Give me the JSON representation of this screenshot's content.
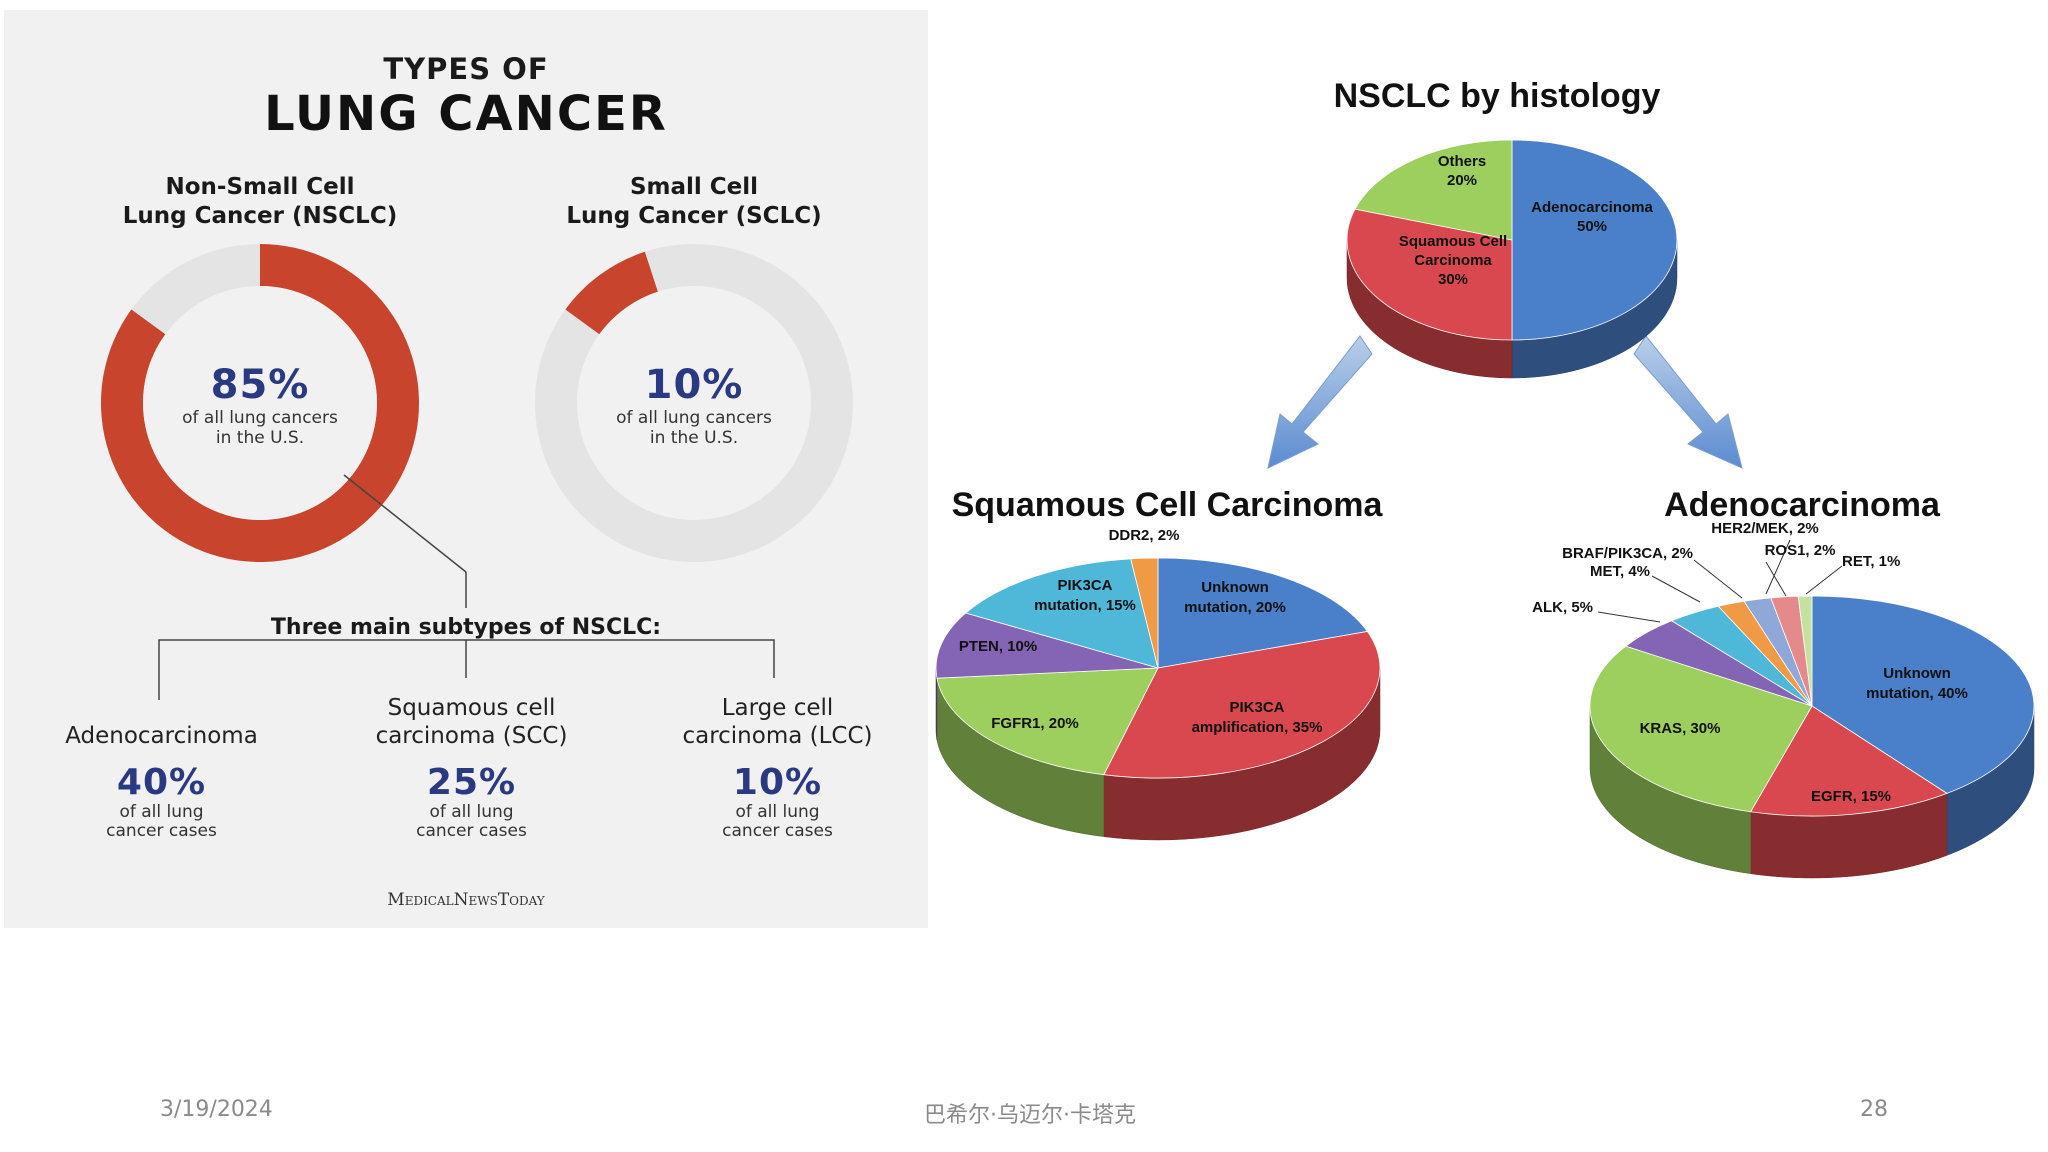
{
  "infographic": {
    "title_small": "TYPES OF",
    "title_big": "LUNG CANCER",
    "nsclc": {
      "header_l1": "Non-Small Cell",
      "header_l2": "Lung Cancer (NSCLC)",
      "percent": "85%",
      "fraction": 0.85,
      "note_l1": "of all lung cancers",
      "note_l2": "in the U.S.",
      "color": "#c9442d"
    },
    "sclc": {
      "header_l1": "Small Cell",
      "header_l2": "Lung Cancer (SCLC)",
      "percent": "10%",
      "fraction": 0.1,
      "note_l1": "of all lung cancers",
      "note_l2": "in the U.S.",
      "color": "#c9442d"
    },
    "subtypes_heading": "Three main subtypes of NSCLC:",
    "subtypes": [
      {
        "name_l1": "",
        "name_l2": "Adenocarcinoma",
        "percent": "40%",
        "note_l1": "of all lung",
        "note_l2": "cancer cases"
      },
      {
        "name_l1": "Squamous cell",
        "name_l2": "carcinoma (SCC)",
        "percent": "25%",
        "note_l1": "of all lung",
        "note_l2": "cancer cases"
      },
      {
        "name_l1": "Large cell",
        "name_l2": "carcinoma (LCC)",
        "percent": "10%",
        "note_l1": "of all lung",
        "note_l2": "cancer cases"
      }
    ],
    "logo": "MedicalNewsToday"
  },
  "chart_data": [
    {
      "type": "pie",
      "title": "NSCLC by histology",
      "slices": [
        {
          "label": "Adenocarcinoma",
          "pct_label": "50%",
          "value": 50,
          "color": "#4a7fc9"
        },
        {
          "label": "Squamous Cell Carcinoma",
          "pct_label": "30%",
          "value": 30,
          "color": "#d9484e"
        },
        {
          "label": "Others",
          "pct_label": "20%",
          "value": 20,
          "color": "#9ccf5e"
        }
      ]
    },
    {
      "type": "pie",
      "title": "Squamous Cell Carcinoma",
      "slices": [
        {
          "label": "Unknown mutation, 20%",
          "value": 20,
          "color": "#4a7fc9"
        },
        {
          "label": "PIK3CA amplification, 35%",
          "value": 35,
          "color": "#d9484e"
        },
        {
          "label": "FGFR1, 20%",
          "value": 20,
          "color": "#9ccf5e"
        },
        {
          "label": "PTEN, 10%",
          "value": 10,
          "color": "#8464b4"
        },
        {
          "label": "PIK3CA mutation, 15%",
          "value": 15,
          "color": "#4fb8d8"
        },
        {
          "label": "DDR2, 2%",
          "value": 2,
          "color": "#f09a45"
        }
      ]
    },
    {
      "type": "pie",
      "title": "Adenocarcinoma",
      "slices": [
        {
          "label": "Unknown mutation, 40%",
          "value": 40,
          "color": "#4a7fc9"
        },
        {
          "label": "EGFR, 15%",
          "value": 15,
          "color": "#d9484e"
        },
        {
          "label": "KRAS, 30%",
          "value": 30,
          "color": "#9ccf5e"
        },
        {
          "label": "ALK, 5%",
          "value": 5,
          "color": "#8464b4"
        },
        {
          "label": "MET, 4%",
          "value": 4,
          "color": "#4fb8d8"
        },
        {
          "label": "BRAF/PIK3CA, 2%",
          "value": 2,
          "color": "#f09a45"
        },
        {
          "label": "ROS1, 2%",
          "value": 2,
          "color": "#8fa8d8"
        },
        {
          "label": "HER2/MEK, 2%",
          "value": 2,
          "color": "#e58a8a"
        },
        {
          "label": "RET, 1%",
          "value": 1,
          "color": "#c6e0a0"
        }
      ]
    }
  ],
  "footer": {
    "date": "3/19/2024",
    "author": "巴希尔·乌迈尔·卡塔克",
    "page": "28"
  }
}
